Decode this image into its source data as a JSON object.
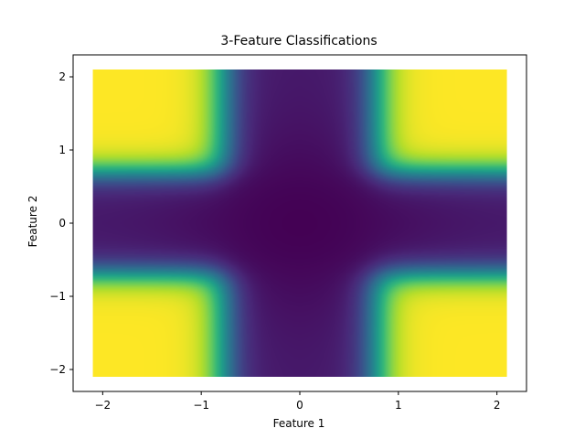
{
  "chart_data": {
    "type": "heatmap",
    "title": "3-Feature Classifications",
    "xlabel": "Feature 1",
    "ylabel": "Feature 2",
    "xlim": [
      -2.3,
      2.3
    ],
    "ylim": [
      -2.3,
      2.3
    ],
    "data_extent": {
      "x": [
        -2.1,
        2.1
      ],
      "y": [
        -2.1,
        2.1
      ]
    },
    "xticks": [
      -2,
      -1,
      0,
      1,
      2
    ],
    "yticks": [
      -2,
      -1,
      0,
      1,
      2
    ],
    "xtick_labels": [
      "−2",
      "−1",
      "0",
      "1",
      "2"
    ],
    "ytick_labels": [
      "−2",
      "−1",
      "0",
      "1",
      "2"
    ],
    "grid": false,
    "colormap": "viridis",
    "colormap_stops": [
      "#440154",
      "#482878",
      "#3e4989",
      "#31688e",
      "#26828e",
      "#1f9e89",
      "#35b779",
      "#6ece58",
      "#b5de2b",
      "#fde725"
    ],
    "class_regions": [
      {
        "region": "top-left",
        "x": [
          -2.1,
          -0.8
        ],
        "y": [
          0.7,
          2.1
        ],
        "class_value": 1
      },
      {
        "region": "top-right",
        "x": [
          0.7,
          2.1
        ],
        "y": [
          0.7,
          2.1
        ],
        "class_value": 1
      },
      {
        "region": "bottom-left",
        "x": [
          -2.1,
          -0.8
        ],
        "y": [
          -2.1,
          -0.7
        ],
        "class_value": 1
      },
      {
        "region": "bottom-right",
        "x": [
          0.7,
          2.1
        ],
        "y": [
          -2.1,
          -0.7
        ],
        "class_value": 1
      },
      {
        "region": "central-cross",
        "class_value": 0
      }
    ]
  }
}
